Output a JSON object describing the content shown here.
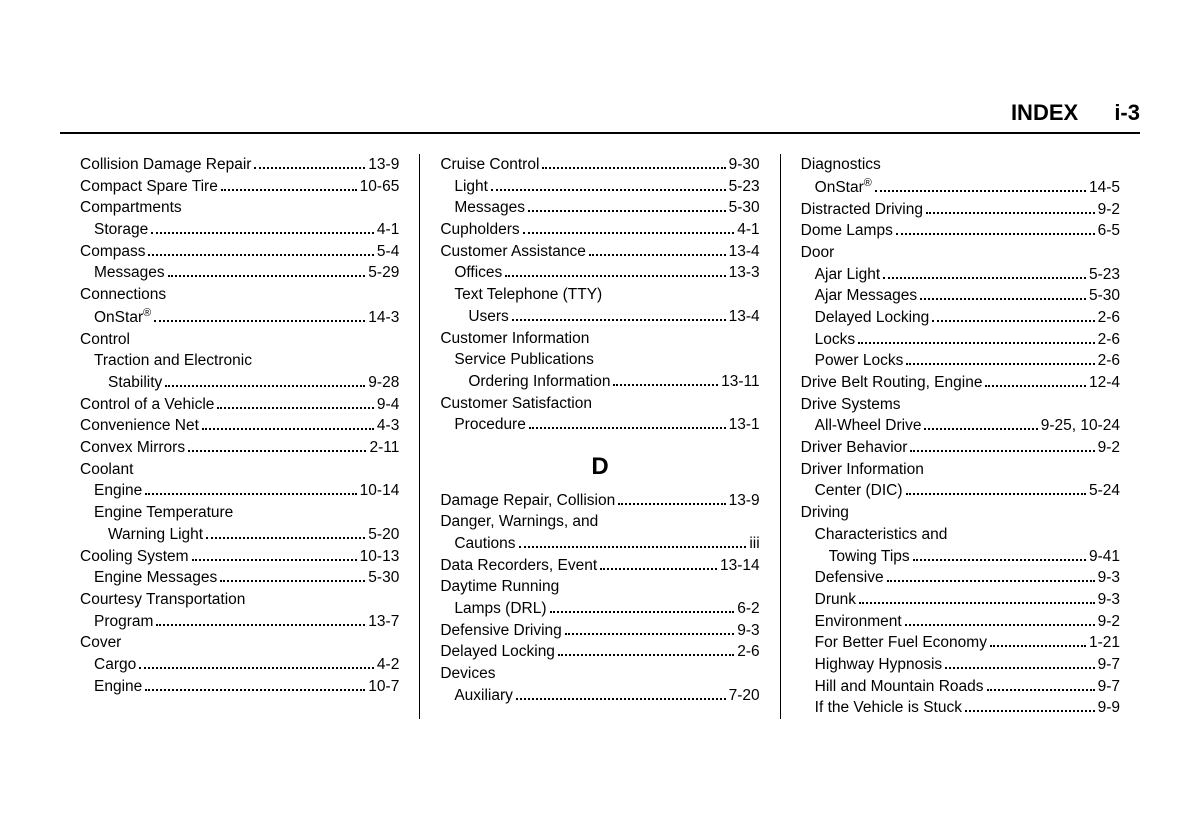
{
  "header": {
    "title": "INDEX",
    "pagenum": "i-3"
  },
  "columns": [
    {
      "entries": [
        {
          "label": "Collision Damage Repair",
          "page": "13-9",
          "indent": 0
        },
        {
          "label": "Compact Spare Tire",
          "page": "10-65",
          "indent": 0
        },
        {
          "label": "Compartments",
          "indent": 0
        },
        {
          "label": "Storage",
          "page": "4-1",
          "indent": 1
        },
        {
          "label": "Compass",
          "page": "5-4",
          "indent": 0
        },
        {
          "label": "Messages",
          "page": "5-29",
          "indent": 1
        },
        {
          "label": "Connections",
          "indent": 0
        },
        {
          "label": "OnStar",
          "sup": "®",
          "page": "14-3",
          "indent": 1
        },
        {
          "label": "Control",
          "indent": 0
        },
        {
          "label": "Traction and Electronic",
          "indent": 1
        },
        {
          "label": "Stability",
          "page": "9-28",
          "indent": 2
        },
        {
          "label": "Control of a Vehicle",
          "page": "9-4",
          "indent": 0
        },
        {
          "label": "Convenience Net",
          "page": "4-3",
          "indent": 0
        },
        {
          "label": "Convex Mirrors",
          "page": "2-11",
          "indent": 0
        },
        {
          "label": "Coolant",
          "indent": 0
        },
        {
          "label": "Engine",
          "page": "10-14",
          "indent": 1
        },
        {
          "label": "Engine Temperature",
          "indent": 1
        },
        {
          "label": "Warning Light",
          "page": "5-20",
          "indent": 2
        },
        {
          "label": "Cooling System",
          "page": "10-13",
          "indent": 0
        },
        {
          "label": "Engine Messages",
          "page": "5-30",
          "indent": 1
        },
        {
          "label": "Courtesy Transportation",
          "indent": 0
        },
        {
          "label": "Program",
          "page": "13-7",
          "indent": 1
        },
        {
          "label": "Cover",
          "indent": 0
        },
        {
          "label": "Cargo",
          "page": "4-2",
          "indent": 1
        },
        {
          "label": "Engine",
          "page": "10-7",
          "indent": 1
        }
      ]
    },
    {
      "entries": [
        {
          "label": "Cruise Control",
          "page": "9-30",
          "indent": 0
        },
        {
          "label": "Light",
          "page": "5-23",
          "indent": 1
        },
        {
          "label": "Messages",
          "page": "5-30",
          "indent": 1
        },
        {
          "label": "Cupholders",
          "page": "4-1",
          "indent": 0
        },
        {
          "label": "Customer Assistance",
          "page": "13-4",
          "indent": 0
        },
        {
          "label": "Offices",
          "page": "13-3",
          "indent": 1
        },
        {
          "label": "Text Telephone (TTY)",
          "indent": 1
        },
        {
          "label": "Users",
          "page": "13-4",
          "indent": 2
        },
        {
          "label": "Customer Information",
          "indent": 0
        },
        {
          "label": "Service Publications",
          "indent": 1
        },
        {
          "label": "Ordering Information",
          "page": "13-11",
          "indent": 2
        },
        {
          "label": "Customer Satisfaction",
          "indent": 0
        },
        {
          "label": "Procedure",
          "page": "13-1",
          "indent": 1
        },
        {
          "section": "D"
        },
        {
          "label": "Damage Repair, Collision",
          "page": "13-9",
          "indent": 0
        },
        {
          "label": "Danger, Warnings, and",
          "indent": 0
        },
        {
          "label": "Cautions",
          "page": "iii",
          "indent": 1
        },
        {
          "label": "Data Recorders, Event",
          "page": "13-14",
          "indent": 0
        },
        {
          "label": "Daytime Running",
          "indent": 0
        },
        {
          "label": "Lamps (DRL)",
          "page": "6-2",
          "indent": 1
        },
        {
          "label": "Defensive Driving",
          "page": "9-3",
          "indent": 0
        },
        {
          "label": "Delayed Locking",
          "page": "2-6",
          "indent": 0
        },
        {
          "label": "Devices",
          "indent": 0
        },
        {
          "label": "Auxiliary",
          "page": "7-20",
          "indent": 1
        }
      ]
    },
    {
      "entries": [
        {
          "label": "Diagnostics",
          "indent": 0
        },
        {
          "label": "OnStar",
          "sup": "®",
          "page": "14-5",
          "indent": 1
        },
        {
          "label": "Distracted Driving",
          "page": "9-2",
          "indent": 0
        },
        {
          "label": "Dome Lamps",
          "page": "6-5",
          "indent": 0
        },
        {
          "label": "Door",
          "indent": 0
        },
        {
          "label": "Ajar Light",
          "page": "5-23",
          "indent": 1
        },
        {
          "label": "Ajar Messages",
          "page": "5-30",
          "indent": 1
        },
        {
          "label": "Delayed Locking",
          "page": "2-6",
          "indent": 1
        },
        {
          "label": "Locks",
          "page": "2-6",
          "indent": 1
        },
        {
          "label": "Power Locks",
          "page": "2-6",
          "indent": 1
        },
        {
          "label": "Drive Belt Routing, Engine",
          "page": "12-4",
          "indent": 0
        },
        {
          "label": "Drive Systems",
          "indent": 0
        },
        {
          "label": "All-Wheel Drive",
          "page": "9-25, 10-24",
          "indent": 1
        },
        {
          "label": "Driver Behavior",
          "page": "9-2",
          "indent": 0
        },
        {
          "label": "Driver Information",
          "indent": 0
        },
        {
          "label": "Center (DIC)",
          "page": "5-24",
          "indent": 1
        },
        {
          "label": "Driving",
          "indent": 0
        },
        {
          "label": "Characteristics and",
          "indent": 1
        },
        {
          "label": "Towing Tips",
          "page": "9-41",
          "indent": 2
        },
        {
          "label": "Defensive",
          "page": "9-3",
          "indent": 1
        },
        {
          "label": "Drunk",
          "page": "9-3",
          "indent": 1
        },
        {
          "label": "Environment",
          "page": "9-2",
          "indent": 1
        },
        {
          "label": "For Better Fuel Economy",
          "page": "1-21",
          "indent": 1
        },
        {
          "label": "Highway Hypnosis",
          "page": "9-7",
          "indent": 1
        },
        {
          "label": "Hill and Mountain Roads",
          "page": "9-7",
          "indent": 1
        },
        {
          "label": "If the Vehicle is Stuck",
          "page": "9-9",
          "indent": 1
        }
      ]
    }
  ]
}
